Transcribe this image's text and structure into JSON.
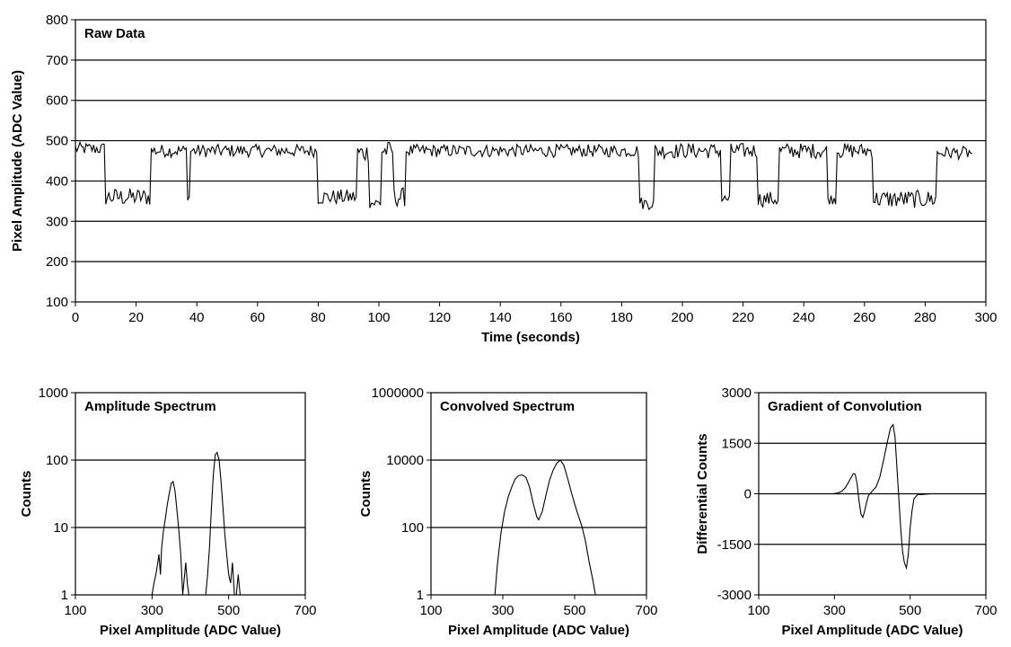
{
  "chart_data": [
    {
      "id": "raw",
      "type": "line",
      "title": "Raw Data",
      "xlabel": "Time (seconds)",
      "ylabel": "Pixel Amplitude (ADC Value)",
      "xlim": [
        0,
        300
      ],
      "ylim": [
        100,
        800
      ],
      "xticks": [
        0,
        20,
        40,
        60,
        80,
        100,
        120,
        140,
        160,
        180,
        200,
        220,
        240,
        260,
        280,
        300
      ],
      "yticks": [
        100,
        200,
        300,
        400,
        500,
        600,
        700,
        800
      ],
      "grid": "horizontal",
      "segments": [
        {
          "x0": 0,
          "x1": 10,
          "level": 480,
          "noise": 10
        },
        {
          "x0": 10,
          "x1": 25,
          "level": 360,
          "noise": 14
        },
        {
          "x0": 25,
          "x1": 37,
          "level": 475,
          "noise": 10
        },
        {
          "x0": 37,
          "x1": 38,
          "level": 360,
          "noise": 5
        },
        {
          "x0": 38,
          "x1": 80,
          "level": 475,
          "noise": 10
        },
        {
          "x0": 80,
          "x1": 93,
          "level": 360,
          "noise": 12
        },
        {
          "x0": 93,
          "x1": 97,
          "level": 470,
          "noise": 15
        },
        {
          "x0": 97,
          "x1": 101,
          "level": 345,
          "noise": 10
        },
        {
          "x0": 101,
          "x1": 105,
          "level": 475,
          "noise": 15
        },
        {
          "x0": 105,
          "x1": 109,
          "level": 360,
          "noise": 15
        },
        {
          "x0": 109,
          "x1": 186,
          "level": 475,
          "noise": 10
        },
        {
          "x0": 186,
          "x1": 191,
          "level": 345,
          "noise": 10
        },
        {
          "x0": 191,
          "x1": 213,
          "level": 475,
          "noise": 12
        },
        {
          "x0": 213,
          "x1": 216,
          "level": 355,
          "noise": 8
        },
        {
          "x0": 216,
          "x1": 225,
          "level": 475,
          "noise": 12
        },
        {
          "x0": 225,
          "x1": 232,
          "level": 355,
          "noise": 12
        },
        {
          "x0": 232,
          "x1": 248,
          "level": 475,
          "noise": 12
        },
        {
          "x0": 248,
          "x1": 251,
          "level": 355,
          "noise": 8
        },
        {
          "x0": 251,
          "x1": 263,
          "level": 475,
          "noise": 12
        },
        {
          "x0": 263,
          "x1": 284,
          "level": 355,
          "noise": 14
        },
        {
          "x0": 284,
          "x1": 296,
          "level": 470,
          "noise": 10
        }
      ]
    },
    {
      "id": "amp",
      "type": "line",
      "title": "Amplitude Spectrum",
      "xlabel": "Pixel Amplitude (ADC Value)",
      "ylabel": "Counts",
      "xscale": "linear",
      "yscale": "log",
      "xlim": [
        100,
        700
      ],
      "ylim": [
        1,
        1000
      ],
      "xticks": [
        100,
        300,
        500,
        700
      ],
      "yticks": [
        1,
        10,
        100,
        1000
      ],
      "ytick_labels": [
        "1",
        "10",
        "100",
        "1000"
      ],
      "grid": "horizontal",
      "x": [
        300,
        305,
        310,
        315,
        318,
        322,
        325,
        330,
        335,
        340,
        345,
        350,
        355,
        360,
        365,
        370,
        375,
        380,
        385,
        388,
        392,
        396,
        400,
        405,
        410,
        415,
        420,
        425,
        430,
        435,
        440,
        445,
        450,
        455,
        460,
        465,
        470,
        475,
        480,
        485,
        490,
        495,
        500,
        505,
        510,
        515,
        520,
        525,
        530
      ],
      "y": [
        1,
        1.5,
        2,
        3,
        4,
        2,
        5,
        9,
        14,
        22,
        32,
        45,
        48,
        35,
        18,
        9,
        4,
        1,
        2,
        3,
        1.5,
        1,
        1,
        1,
        1,
        1,
        1,
        1,
        1,
        1,
        1,
        2,
        5,
        20,
        60,
        120,
        130,
        100,
        50,
        20,
        8,
        4,
        2,
        1.5,
        3,
        1,
        1,
        2,
        1
      ],
      "ytick_positions_note": ""
    },
    {
      "id": "conv",
      "type": "line",
      "title": "Convolved Spectrum",
      "xlabel": "Pixel Amplitude (ADC Value)",
      "ylabel": "Counts",
      "xscale": "linear",
      "yscale": "log",
      "xlim": [
        100,
        700
      ],
      "ylim": [
        1,
        1000000
      ],
      "xticks": [
        100,
        300,
        500,
        700
      ],
      "yticks": [
        1,
        100,
        10000,
        1000000
      ],
      "ytick_labels": [
        "1",
        "100",
        "10000",
        "1000000"
      ],
      "grid": "horizontal",
      "x": [
        278,
        285,
        295,
        305,
        315,
        325,
        335,
        345,
        355,
        365,
        375,
        385,
        395,
        400,
        410,
        420,
        430,
        440,
        450,
        460,
        470,
        480,
        490,
        500,
        510,
        520,
        530,
        540,
        550,
        558
      ],
      "y": [
        1,
        8,
        70,
        300,
        800,
        1600,
        2800,
        3500,
        3600,
        3000,
        1500,
        500,
        200,
        170,
        300,
        900,
        2500,
        5000,
        8000,
        10000,
        7000,
        3000,
        1200,
        500,
        230,
        110,
        40,
        10,
        3,
        1
      ]
    },
    {
      "id": "grad",
      "type": "line",
      "title": "Gradient of Convolution",
      "xlabel": "Pixel Amplitude (ADC Value)",
      "ylabel": "Differential Counts",
      "xlim": [
        100,
        700
      ],
      "ylim": [
        -3000,
        3000
      ],
      "xticks": [
        100,
        300,
        500,
        700
      ],
      "yticks": [
        -3000,
        -1500,
        0,
        1500,
        3000
      ],
      "grid": "horizontal",
      "x": [
        295,
        300,
        310,
        320,
        330,
        340,
        350,
        355,
        360,
        365,
        370,
        375,
        380,
        385,
        390,
        400,
        410,
        420,
        430,
        440,
        448,
        455,
        460,
        465,
        470,
        475,
        480,
        485,
        490,
        495,
        500,
        505,
        510,
        520,
        530,
        540,
        550
      ],
      "y": [
        0,
        5,
        30,
        80,
        200,
        400,
        600,
        580,
        300,
        -200,
        -600,
        -700,
        -500,
        -250,
        -50,
        80,
        200,
        500,
        1000,
        1550,
        1950,
        2050,
        1700,
        800,
        -100,
        -1000,
        -1700,
        -2050,
        -2200,
        -1800,
        -1000,
        -500,
        -150,
        -20,
        -20,
        -10,
        -5
      ]
    }
  ]
}
